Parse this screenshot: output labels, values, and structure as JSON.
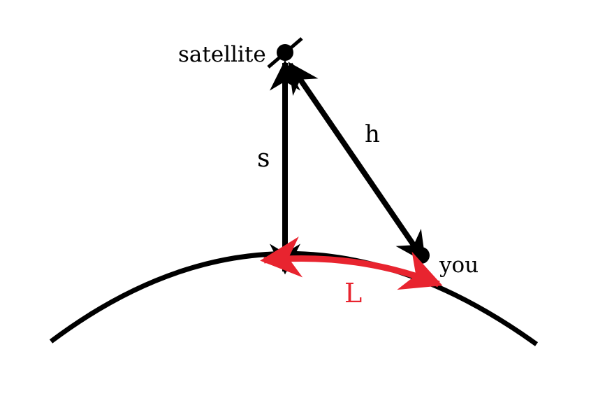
{
  "labels": {
    "satellite": "satellite",
    "h": "h",
    "s": "s",
    "you": "you",
    "L": "L"
  },
  "colors": {
    "ink": "#000000",
    "arc": "#e8242f"
  }
}
